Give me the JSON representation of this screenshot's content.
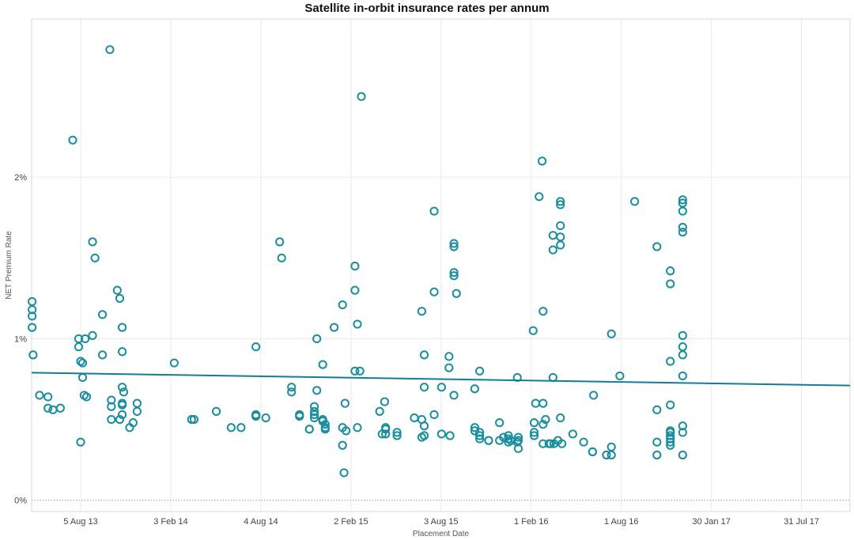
{
  "chart_data": {
    "type": "scatter",
    "title": "Satellite in-orbit insurance rates per annum",
    "xlabel": "Placement Date",
    "ylabel": "NET Premium Rate",
    "x_unit": "days since 2013-01-01",
    "x_range": [
      117,
      1770
    ],
    "ylim": [
      -0.07,
      2.98
    ],
    "y_ticks": [
      {
        "value": 0,
        "label": "0%"
      },
      {
        "value": 1,
        "label": "1%"
      },
      {
        "value": 2,
        "label": "2%"
      }
    ],
    "x_ticks": [
      {
        "value": 216,
        "label": "5 Aug 13"
      },
      {
        "value": 398,
        "label": "3 Feb 14"
      },
      {
        "value": 580,
        "label": "4 Aug 14"
      },
      {
        "value": 762,
        "label": "2 Feb 15"
      },
      {
        "value": 944,
        "label": "3 Aug 15"
      },
      {
        "value": 1126,
        "label": "1 Feb 16"
      },
      {
        "value": 1308,
        "label": "1 Aug 16"
      },
      {
        "value": 1490,
        "label": "30 Jan 17"
      },
      {
        "value": 1672,
        "label": "31 Jul 17"
      }
    ],
    "trend_line": {
      "x": [
        117,
        1770
      ],
      "y": [
        0.79,
        0.71
      ]
    },
    "colors": {
      "points": "#1a8e9e",
      "trend": "#0f7f95",
      "grid": "#ece8f2",
      "zero_line": "#b49ac8"
    },
    "points": [
      [
        118,
        1.23
      ],
      [
        118,
        1.18
      ],
      [
        118,
        1.14
      ],
      [
        118,
        1.07
      ],
      [
        120,
        0.9
      ],
      [
        133,
        0.65
      ],
      [
        150,
        0.64
      ],
      [
        150,
        0.57
      ],
      [
        160,
        0.56
      ],
      [
        175,
        0.57
      ],
      [
        200,
        2.23
      ],
      [
        212,
        1.0
      ],
      [
        212,
        0.95
      ],
      [
        216,
        0.86
      ],
      [
        216,
        0.36
      ],
      [
        220,
        0.85
      ],
      [
        220,
        0.76
      ],
      [
        223,
        0.65
      ],
      [
        225,
        1.0
      ],
      [
        228,
        0.64
      ],
      [
        240,
        1.6
      ],
      [
        240,
        1.02
      ],
      [
        245,
        1.5
      ],
      [
        260,
        1.15
      ],
      [
        260,
        0.9
      ],
      [
        275,
        2.79
      ],
      [
        278,
        0.62
      ],
      [
        278,
        0.58
      ],
      [
        278,
        0.5
      ],
      [
        290,
        1.3
      ],
      [
        295,
        1.25
      ],
      [
        295,
        0.5
      ],
      [
        300,
        1.07
      ],
      [
        300,
        0.92
      ],
      [
        300,
        0.7
      ],
      [
        300,
        0.6
      ],
      [
        300,
        0.59
      ],
      [
        300,
        0.53
      ],
      [
        303,
        0.67
      ],
      [
        315,
        0.45
      ],
      [
        322,
        0.48
      ],
      [
        330,
        0.6
      ],
      [
        330,
        0.55
      ],
      [
        405,
        0.85
      ],
      [
        440,
        0.5
      ],
      [
        445,
        0.5
      ],
      [
        490,
        0.55
      ],
      [
        520,
        0.45
      ],
      [
        540,
        0.45
      ],
      [
        570,
        0.95
      ],
      [
        570,
        0.53
      ],
      [
        570,
        0.52
      ],
      [
        590,
        0.51
      ],
      [
        618,
        1.6
      ],
      [
        622,
        1.5
      ],
      [
        642,
        0.7
      ],
      [
        642,
        0.67
      ],
      [
        658,
        0.53
      ],
      [
        658,
        0.52
      ],
      [
        678,
        0.44
      ],
      [
        678,
        0.44
      ],
      [
        688,
        0.58
      ],
      [
        688,
        0.55
      ],
      [
        688,
        0.53
      ],
      [
        688,
        0.51
      ],
      [
        693,
        1.0
      ],
      [
        693,
        0.68
      ],
      [
        705,
        0.84
      ],
      [
        705,
        0.5
      ],
      [
        705,
        0.49
      ],
      [
        710,
        0.47
      ],
      [
        710,
        0.45
      ],
      [
        710,
        0.44
      ],
      [
        728,
        1.07
      ],
      [
        745,
        1.21
      ],
      [
        745,
        0.45
      ],
      [
        745,
        0.34
      ],
      [
        748,
        0.17
      ],
      [
        750,
        0.6
      ],
      [
        752,
        0.43
      ],
      [
        770,
        1.45
      ],
      [
        770,
        1.3
      ],
      [
        770,
        0.8
      ],
      [
        775,
        1.09
      ],
      [
        775,
        0.45
      ],
      [
        780,
        0.8
      ],
      [
        783,
        2.5
      ],
      [
        820,
        0.55
      ],
      [
        825,
        0.41
      ],
      [
        830,
        0.61
      ],
      [
        832,
        0.45
      ],
      [
        832,
        0.44
      ],
      [
        832,
        0.41
      ],
      [
        855,
        0.42
      ],
      [
        855,
        0.4
      ],
      [
        890,
        0.51
      ],
      [
        905,
        1.17
      ],
      [
        905,
        0.5
      ],
      [
        905,
        0.39
      ],
      [
        910,
        0.9
      ],
      [
        910,
        0.7
      ],
      [
        910,
        0.46
      ],
      [
        910,
        0.4
      ],
      [
        930,
        1.79
      ],
      [
        930,
        1.29
      ],
      [
        930,
        0.53
      ],
      [
        945,
        0.7
      ],
      [
        945,
        0.41
      ],
      [
        960,
        0.89
      ],
      [
        960,
        0.82
      ],
      [
        962,
        0.4
      ],
      [
        970,
        1.59
      ],
      [
        970,
        1.57
      ],
      [
        970,
        1.41
      ],
      [
        970,
        1.39
      ],
      [
        970,
        0.65
      ],
      [
        975,
        1.28
      ],
      [
        1012,
        0.69
      ],
      [
        1012,
        0.45
      ],
      [
        1012,
        0.43
      ],
      [
        1022,
        0.8
      ],
      [
        1022,
        0.42
      ],
      [
        1022,
        0.4
      ],
      [
        1022,
        0.38
      ],
      [
        1040,
        0.37
      ],
      [
        1040,
        0.37
      ],
      [
        1062,
        0.48
      ],
      [
        1062,
        0.37
      ],
      [
        1070,
        0.39
      ],
      [
        1080,
        0.4
      ],
      [
        1080,
        0.38
      ],
      [
        1080,
        0.36
      ],
      [
        1085,
        0.37
      ],
      [
        1098,
        0.76
      ],
      [
        1098,
        0.36
      ],
      [
        1100,
        0.39
      ],
      [
        1100,
        0.37
      ],
      [
        1100,
        0.32
      ],
      [
        1130,
        1.05
      ],
      [
        1132,
        0.48
      ],
      [
        1132,
        0.42
      ],
      [
        1132,
        0.4
      ],
      [
        1135,
        0.6
      ],
      [
        1142,
        1.88
      ],
      [
        1148,
        2.1
      ],
      [
        1150,
        1.17
      ],
      [
        1150,
        0.6
      ],
      [
        1150,
        0.47
      ],
      [
        1150,
        0.35
      ],
      [
        1155,
        0.5
      ],
      [
        1162,
        0.35
      ],
      [
        1165,
        0.35
      ],
      [
        1170,
        1.64
      ],
      [
        1170,
        1.55
      ],
      [
        1170,
        0.76
      ],
      [
        1172,
        0.35
      ],
      [
        1180,
        0.37
      ],
      [
        1185,
        1.85
      ],
      [
        1185,
        1.83
      ],
      [
        1185,
        1.7
      ],
      [
        1185,
        1.63
      ],
      [
        1185,
        1.58
      ],
      [
        1185,
        0.51
      ],
      [
        1188,
        0.35
      ],
      [
        1210,
        0.41
      ],
      [
        1232,
        0.36
      ],
      [
        1250,
        0.3
      ],
      [
        1250,
        0.3
      ],
      [
        1252,
        0.65
      ],
      [
        1278,
        0.28
      ],
      [
        1288,
        1.03
      ],
      [
        1288,
        0.33
      ],
      [
        1288,
        0.28
      ],
      [
        1305,
        0.77
      ],
      [
        1335,
        1.85
      ],
      [
        1380,
        1.57
      ],
      [
        1380,
        0.56
      ],
      [
        1380,
        0.36
      ],
      [
        1380,
        0.28
      ],
      [
        1407,
        1.42
      ],
      [
        1407,
        1.34
      ],
      [
        1407,
        0.86
      ],
      [
        1407,
        0.59
      ],
      [
        1407,
        0.43
      ],
      [
        1407,
        0.42
      ],
      [
        1407,
        0.4
      ],
      [
        1407,
        0.38
      ],
      [
        1407,
        0.36
      ],
      [
        1407,
        0.34
      ],
      [
        1432,
        1.86
      ],
      [
        1432,
        1.84
      ],
      [
        1432,
        1.79
      ],
      [
        1432,
        1.69
      ],
      [
        1432,
        1.66
      ],
      [
        1432,
        1.02
      ],
      [
        1432,
        0.95
      ],
      [
        1432,
        0.9
      ],
      [
        1432,
        0.77
      ],
      [
        1432,
        0.46
      ],
      [
        1432,
        0.42
      ],
      [
        1432,
        0.28
      ]
    ]
  }
}
